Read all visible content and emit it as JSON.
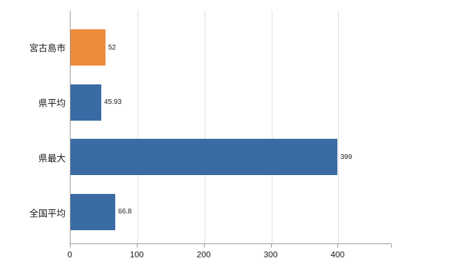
{
  "chart_data": {
    "type": "bar",
    "orientation": "horizontal",
    "categories": [
      "宮古島市",
      "県平均",
      "県最大",
      "全国平均"
    ],
    "values": [
      52,
      45.93,
      399,
      66.8
    ],
    "value_labels": [
      "52",
      "45.93",
      "399",
      "66.8"
    ],
    "bar_colors": [
      "#ED8B3B",
      "#3A6BA5",
      "#3A6BA5",
      "#3A6BA5"
    ],
    "title": "",
    "xlabel": "",
    "ylabel": "",
    "xlim": [
      0,
      480
    ],
    "x_ticks": [
      0,
      100,
      200,
      300,
      400
    ],
    "x_tick_labels": [
      "0",
      "100",
      "200",
      "300",
      "400"
    ],
    "grid": "vertical-only",
    "legend": "none",
    "colors": {
      "grid": "#dedede",
      "axis": "#9a9a9a",
      "text": "#1a1a1a",
      "background": "#ffffff"
    }
  }
}
